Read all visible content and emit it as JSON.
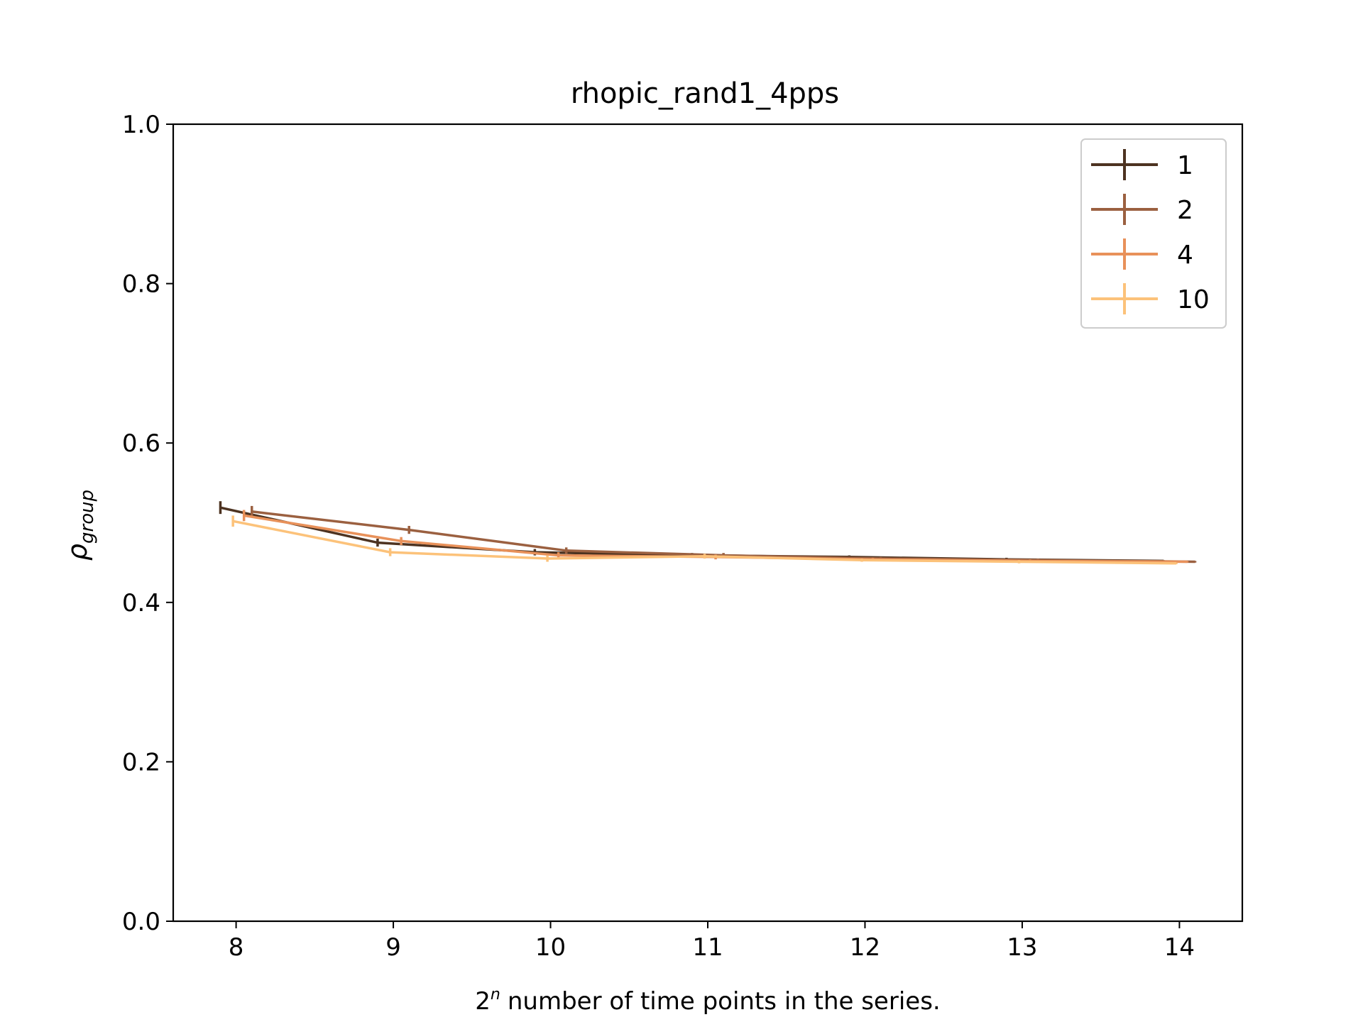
{
  "chart_data": {
    "type": "line",
    "title": "rhopic_rand1_4pps",
    "xlabel": "number of time points in the series.",
    "xlabel_prefix": "2",
    "xlabel_superscript": "n",
    "ylabel_main": "ρ",
    "ylabel_sub": "group",
    "xlim": [
      7.6,
      14.4
    ],
    "ylim": [
      0.0,
      1.0
    ],
    "xticks": [
      8,
      9,
      10,
      11,
      12,
      13,
      14
    ],
    "xtick_labels": [
      "8",
      "9",
      "10",
      "11",
      "12",
      "13",
      "14"
    ],
    "yticks": [
      0.0,
      0.2,
      0.4,
      0.6,
      0.8,
      1.0
    ],
    "ytick_labels": [
      "0.0",
      "0.2",
      "0.4",
      "0.6",
      "0.8",
      "1.0"
    ],
    "grid": false,
    "legend_position": "top-right",
    "series": [
      {
        "name": "1",
        "color": "#4d3321",
        "x": [
          7.9,
          8.9,
          9.9,
          10.9,
          11.9,
          12.9,
          13.9
        ],
        "y": [
          0.519,
          0.475,
          0.463,
          0.459,
          0.457,
          0.454,
          0.452
        ],
        "yerr": [
          0.008,
          0.005,
          0.004,
          0.003,
          0.002,
          0.002,
          0.001
        ]
      },
      {
        "name": "2",
        "color": "#9b6040",
        "x": [
          8.1,
          9.1,
          10.1,
          11.1,
          12.1,
          13.1,
          14.1
        ],
        "y": [
          0.514,
          0.491,
          0.465,
          0.459,
          0.455,
          0.453,
          0.451
        ],
        "yerr": [
          0.007,
          0.005,
          0.004,
          0.003,
          0.002,
          0.002,
          0.001
        ]
      },
      {
        "name": "4",
        "color": "#e8915a",
        "x": [
          8.05,
          9.05,
          10.05,
          11.05,
          12.05,
          13.05,
          14.05
        ],
        "y": [
          0.509,
          0.477,
          0.459,
          0.457,
          0.454,
          0.452,
          0.451
        ],
        "yerr": [
          0.007,
          0.005,
          0.004,
          0.003,
          0.002,
          0.002,
          0.001
        ]
      },
      {
        "name": "10",
        "color": "#fcc27a",
        "x": [
          7.98,
          8.98,
          9.98,
          10.98,
          11.98,
          12.98,
          13.98
        ],
        "y": [
          0.502,
          0.463,
          0.455,
          0.458,
          0.453,
          0.451,
          0.449
        ],
        "yerr": [
          0.007,
          0.005,
          0.004,
          0.003,
          0.002,
          0.002,
          0.001
        ]
      }
    ]
  }
}
